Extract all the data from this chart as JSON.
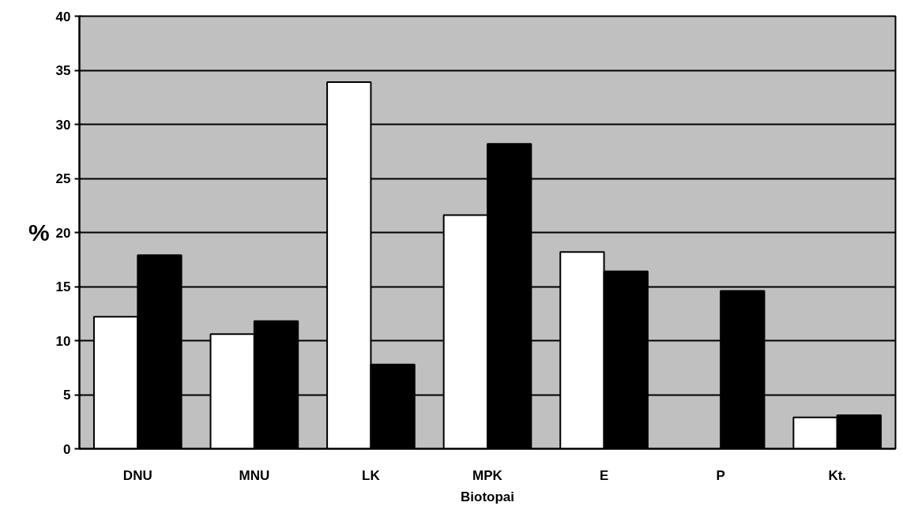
{
  "chart_data": {
    "type": "bar",
    "xlabel": "Biotopai",
    "ylabel": "%",
    "categories": [
      "DNU",
      "MNU",
      "LK",
      "MPK",
      "E",
      "P",
      "Kt."
    ],
    "series": [
      {
        "color": "#ffffff",
        "values": [
          12.2,
          10.6,
          33.9,
          21.6,
          18.2,
          null,
          2.9
        ]
      },
      {
        "color": "#000000",
        "values": [
          17.9,
          11.8,
          7.8,
          28.2,
          16.4,
          14.6,
          3.1
        ]
      }
    ],
    "ylim": [
      0,
      40
    ],
    "yticks": [
      0,
      5,
      10,
      15,
      20,
      25,
      30,
      35,
      40
    ],
    "grid": "y"
  }
}
